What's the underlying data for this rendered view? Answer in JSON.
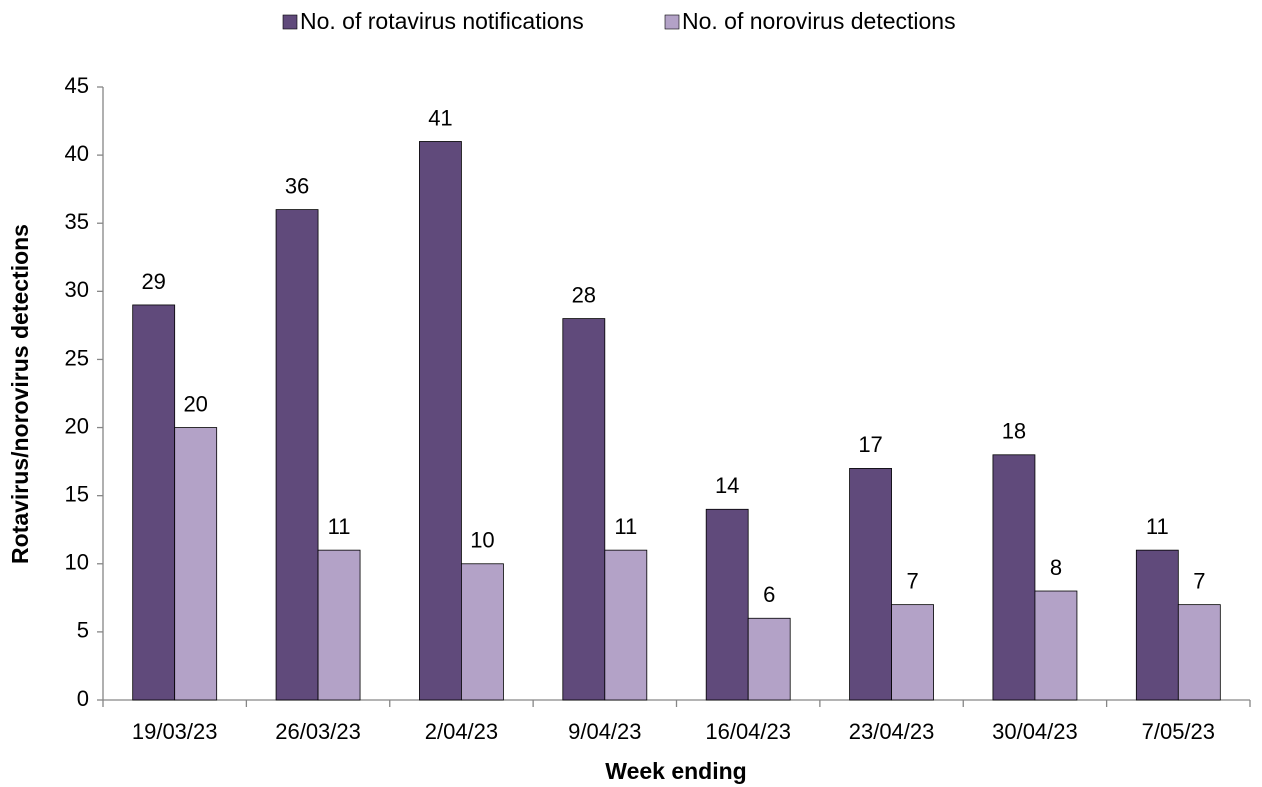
{
  "chart_data": {
    "type": "bar",
    "categories": [
      "19/03/23",
      "26/03/23",
      "2/04/23",
      "9/04/23",
      "16/04/23",
      "23/04/23",
      "30/04/23",
      "7/05/23"
    ],
    "series": [
      {
        "name": "No. of rotavirus notifications",
        "color": "#604a7b",
        "values": [
          29,
          36,
          41,
          28,
          14,
          17,
          18,
          11
        ]
      },
      {
        "name": "No. of norovirus detections",
        "color": "#b3a2c7",
        "values": [
          20,
          11,
          10,
          11,
          6,
          7,
          8,
          7
        ]
      }
    ],
    "x_label": "Week ending",
    "y_label": "Rotavirus/norovirus detections",
    "ylim": [
      0,
      45
    ],
    "yticks": [
      0,
      5,
      10,
      15,
      20,
      25,
      30,
      35,
      40,
      45
    ],
    "grid": false,
    "legend": "top"
  }
}
